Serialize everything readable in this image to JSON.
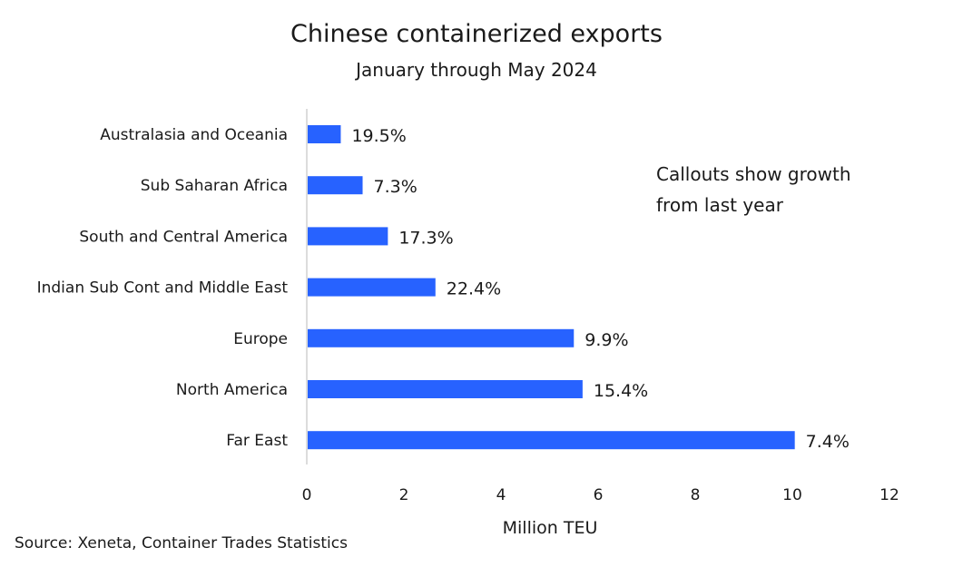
{
  "chart_data": {
    "type": "bar",
    "orientation": "horizontal",
    "title": "Chinese containerized exports",
    "subtitle": "January through May 2024",
    "categories": [
      "Australasia and Oceania",
      "Sub Saharan Africa",
      "South and Central America",
      "Indian Sub Cont and Middle East",
      "Europe",
      "North America",
      "Far East"
    ],
    "values": [
      0.7,
      1.15,
      1.67,
      2.65,
      5.5,
      5.68,
      10.05
    ],
    "data_labels": [
      "19.5%",
      "7.3%",
      "17.3%",
      "22.4%",
      "9.9%",
      "15.4%",
      "7.4%"
    ],
    "xlabel": "Million TEU",
    "ylabel": "",
    "xlim": [
      0,
      12
    ],
    "xticks": [
      0,
      2,
      4,
      6,
      8,
      10,
      12
    ],
    "grid": false,
    "bar_color": "#2762FF",
    "annotation": [
      "Callouts show growth",
      "from last year"
    ],
    "source": "Source: Xeneta, Container Trades Statistics"
  }
}
